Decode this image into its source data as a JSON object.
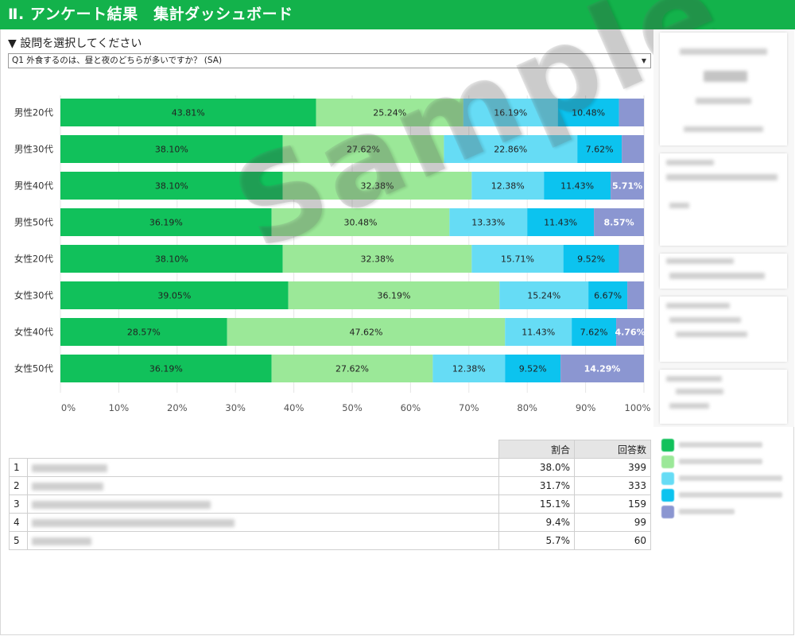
{
  "header": {
    "title": "Ⅱ. アンケート結果　集計ダッシュボード"
  },
  "question": {
    "label": "▼ 設問を選択してください",
    "selected": "Q1 外食するのは、昼と夜のどちらが多いですか？ (SA)"
  },
  "watermark": "Sample",
  "colors": [
    "#11c15b",
    "#9be898",
    "#66dcf5",
    "#0cc3ef",
    "#8b96d1"
  ],
  "chart_data": {
    "type": "bar",
    "orientation": "horizontal-stacked-100",
    "categories": [
      "男性20代",
      "男性30代",
      "男性40代",
      "男性50代",
      "女性20代",
      "女性30代",
      "女性40代",
      "女性50代"
    ],
    "series": [
      {
        "values": [
          43.81,
          38.1,
          38.1,
          36.19,
          38.1,
          39.05,
          28.57,
          36.19
        ]
      },
      {
        "values": [
          25.24,
          27.62,
          32.38,
          30.48,
          32.38,
          36.19,
          47.62,
          27.62
        ]
      },
      {
        "values": [
          16.19,
          22.86,
          12.38,
          13.33,
          15.71,
          15.24,
          11.43,
          12.38
        ]
      },
      {
        "values": [
          10.48,
          7.62,
          11.43,
          11.43,
          9.52,
          6.67,
          7.62,
          9.52
        ]
      },
      {
        "values": [
          4.29,
          3.81,
          5.71,
          8.57,
          4.29,
          2.86,
          4.76,
          14.29
        ]
      }
    ],
    "labels": [
      [
        "43.81%",
        "38.10%",
        "38.10%",
        "36.19%",
        "38.10%",
        "39.05%",
        "28.57%",
        "36.19%"
      ],
      [
        "25.24%",
        "27.62%",
        "32.38%",
        "30.48%",
        "32.38%",
        "36.19%",
        "47.62%",
        "27.62%"
      ],
      [
        "16.19%",
        "22.86%",
        "12.38%",
        "13.33%",
        "15.71%",
        "15.24%",
        "11.43%",
        "12.38%"
      ],
      [
        "10.48%",
        "7.62%",
        "11.43%",
        "11.43%",
        "9.52%",
        "6.67%",
        "7.62%",
        "9.52%"
      ],
      [
        "",
        "",
        "5.71%",
        "8.57%",
        "",
        "",
        "4.76%",
        "14.29%"
      ]
    ],
    "xticks": [
      "0%",
      "10%",
      "20%",
      "30%",
      "40%",
      "50%",
      "60%",
      "70%",
      "80%",
      "90%",
      "100%"
    ],
    "xlim": [
      0,
      100
    ],
    "grid": true
  },
  "table": {
    "headers": [
      "割合",
      "回答数"
    ],
    "rows": [
      {
        "idx": "1",
        "pct": "38.0%",
        "count": "399"
      },
      {
        "idx": "2",
        "pct": "31.7%",
        "count": "333"
      },
      {
        "idx": "3",
        "pct": "15.1%",
        "count": "159"
      },
      {
        "idx": "4",
        "pct": "9.4%",
        "count": "99"
      },
      {
        "idx": "5",
        "pct": "5.7%",
        "count": "60"
      }
    ]
  }
}
